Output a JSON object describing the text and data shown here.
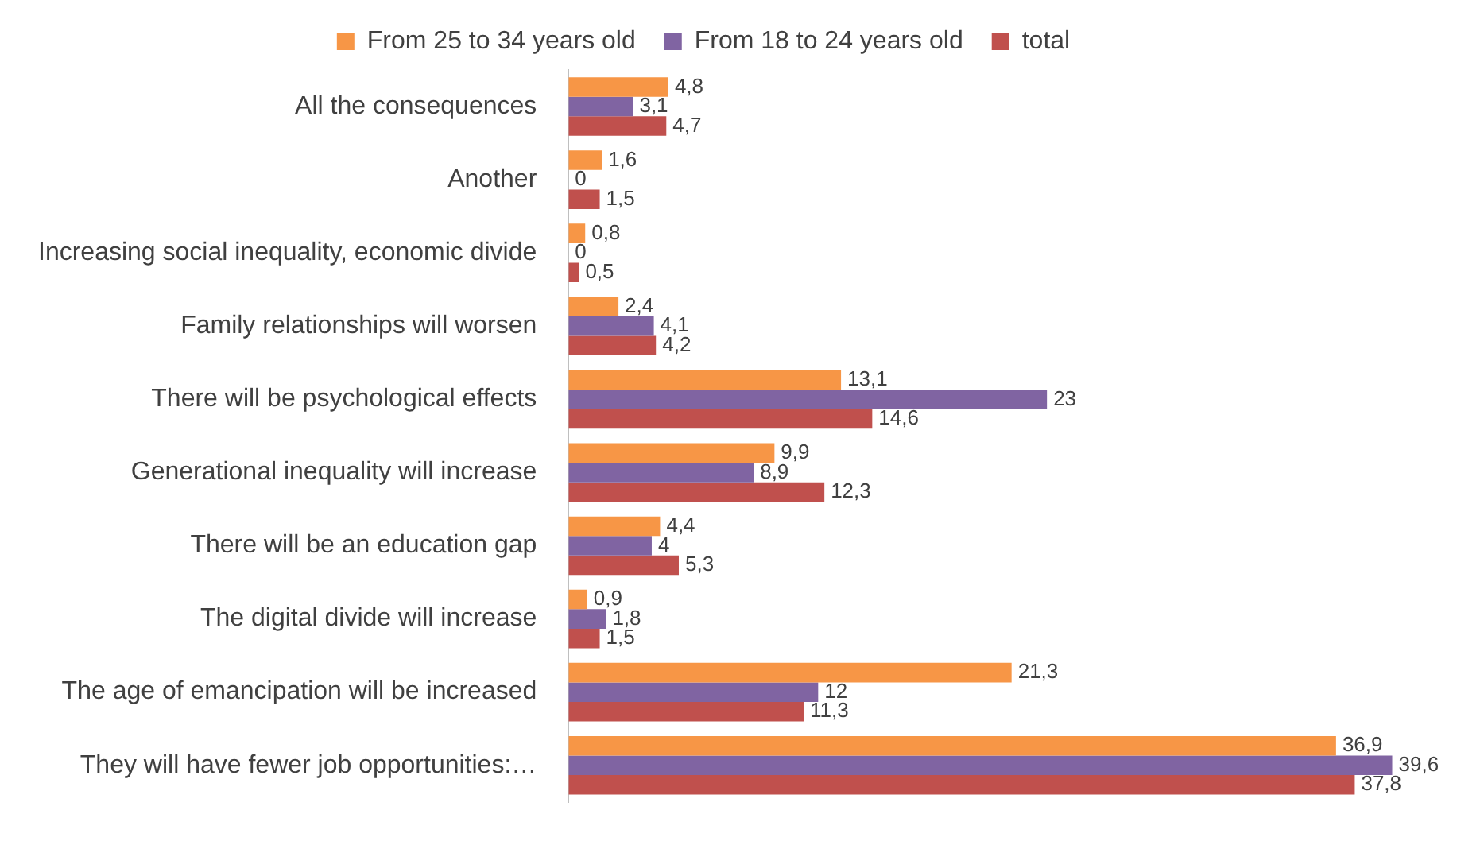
{
  "chart_data": {
    "type": "bar",
    "orientation": "horizontal",
    "legend": "top",
    "grid": false,
    "tick_labels": "y",
    "categories": [
      "All the consequences",
      "Another",
      "Increasing social inequality, economic divide",
      "Family relationships will worsen",
      "There will be psychological effects",
      "Generational inequality will increase",
      "There will be an education gap",
      "The digital divide will increase",
      "The age of emancipation will be increased",
      "They will have fewer job opportunities:…"
    ],
    "series": [
      {
        "name": "From 25 to 34 years old",
        "color": "#f79646",
        "values": [
          4.8,
          1.6,
          0.8,
          2.4,
          13.1,
          9.9,
          4.4,
          0.9,
          21.3,
          36.9
        ],
        "value_labels": [
          "4,8",
          "1,6",
          "0,8",
          "2,4",
          "13,1",
          "9,9",
          "4,4",
          "0,9",
          "21,3",
          "36,9"
        ]
      },
      {
        "name": "From 18 to 24 years old",
        "color": "#8064a2",
        "values": [
          3.1,
          0,
          0,
          4.1,
          23,
          8.9,
          4,
          1.8,
          12,
          39.6
        ],
        "value_labels": [
          "3,1",
          "0",
          "0",
          "4,1",
          "23",
          "8,9",
          "4",
          "1,8",
          "12",
          "39,6"
        ]
      },
      {
        "name": "total",
        "color": "#c0504d",
        "values": [
          4.7,
          1.5,
          0.5,
          4.2,
          14.6,
          12.3,
          5.3,
          1.5,
          11.3,
          37.8
        ],
        "value_labels": [
          "4,7",
          "1,5",
          "0,5",
          "4,2",
          "14,6",
          "12,3",
          "5,3",
          "1,5",
          "11,3",
          "37,8"
        ]
      }
    ]
  }
}
